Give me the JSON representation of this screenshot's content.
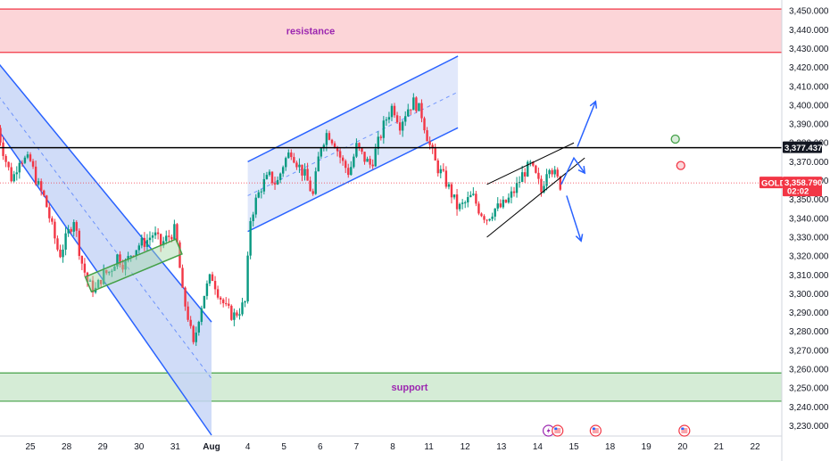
{
  "colors": {
    "up": "#089981",
    "down": "#f23645",
    "resistance_fill": "#fcd5d8",
    "resistance_border": "#f23645",
    "support_fill": "#d5ecd6",
    "support_border": "#43a047",
    "channel_blue": "#2962ff",
    "channel_fill": "#c8d6f7",
    "label_purple": "#9c27b0",
    "level_line": "#000000",
    "price_tag": "#f23645"
  },
  "chart_data": {
    "type": "candlestick",
    "symbol": "GOLD",
    "ylim": [
      3225,
      3452
    ],
    "y_ticks": [
      3230,
      3240,
      3250,
      3260,
      3270,
      3280,
      3290,
      3300,
      3310,
      3320,
      3330,
      3340,
      3350,
      3360,
      3370,
      3380,
      3390,
      3400,
      3410,
      3420,
      3430,
      3440,
      3450
    ],
    "x_ticks": [
      {
        "label": "25",
        "x": 0
      },
      {
        "label": "28",
        "x": 1
      },
      {
        "label": "29",
        "x": 2
      },
      {
        "label": "30",
        "x": 3
      },
      {
        "label": "31",
        "x": 4
      },
      {
        "label": "Aug",
        "x": 5
      },
      {
        "label": "4",
        "x": 6
      },
      {
        "label": "5",
        "x": 7
      },
      {
        "label": "6",
        "x": 8
      },
      {
        "label": "7",
        "x": 9
      },
      {
        "label": "8",
        "x": 10
      },
      {
        "label": "11",
        "x": 11
      },
      {
        "label": "12",
        "x": 12
      },
      {
        "label": "13",
        "x": 13
      },
      {
        "label": "14",
        "x": 14
      },
      {
        "label": "15",
        "x": 15
      },
      {
        "label": "18",
        "x": 16
      },
      {
        "label": "19",
        "x": 17
      },
      {
        "label": "20",
        "x": 18
      },
      {
        "label": "21",
        "x": 19
      },
      {
        "label": "22",
        "x": 20
      }
    ],
    "close_path": [
      [
        -0.9,
        3388
      ],
      [
        -0.7,
        3372
      ],
      [
        -0.5,
        3360
      ],
      [
        -0.3,
        3372
      ],
      [
        0.0,
        3370
      ],
      [
        0.2,
        3358
      ],
      [
        0.4,
        3350
      ],
      [
        0.6,
        3335
      ],
      [
        0.8,
        3320
      ],
      [
        1.0,
        3330
      ],
      [
        1.2,
        3340
      ],
      [
        1.4,
        3318
      ],
      [
        1.6,
        3305
      ],
      [
        1.8,
        3302
      ],
      [
        2.0,
        3310
      ],
      [
        2.2,
        3312
      ],
      [
        2.4,
        3320
      ],
      [
        2.6,
        3315
      ],
      [
        2.8,
        3322
      ],
      [
        3.0,
        3326
      ],
      [
        3.2,
        3328
      ],
      [
        3.4,
        3332
      ],
      [
        3.6,
        3326
      ],
      [
        3.8,
        3330
      ],
      [
        4.0,
        3334
      ],
      [
        4.1,
        3318
      ],
      [
        4.2,
        3300
      ],
      [
        4.35,
        3288
      ],
      [
        4.5,
        3272
      ],
      [
        4.65,
        3288
      ],
      [
        4.8,
        3300
      ],
      [
        5.0,
        3310
      ],
      [
        5.2,
        3300
      ],
      [
        5.4,
        3292
      ],
      [
        5.6,
        3288
      ],
      [
        5.8,
        3292
      ],
      [
        5.95,
        3296
      ],
      [
        6.05,
        3338
      ],
      [
        6.2,
        3348
      ],
      [
        6.4,
        3358
      ],
      [
        6.6,
        3362
      ],
      [
        6.8,
        3358
      ],
      [
        7.0,
        3370
      ],
      [
        7.2,
        3376
      ],
      [
        7.4,
        3368
      ],
      [
        7.6,
        3362
      ],
      [
        7.8,
        3352
      ],
      [
        8.0,
        3378
      ],
      [
        8.2,
        3386
      ],
      [
        8.4,
        3380
      ],
      [
        8.6,
        3370
      ],
      [
        8.8,
        3364
      ],
      [
        9.0,
        3378
      ],
      [
        9.2,
        3372
      ],
      [
        9.4,
        3368
      ],
      [
        9.6,
        3380
      ],
      [
        9.8,
        3392
      ],
      [
        10.0,
        3400
      ],
      [
        10.2,
        3390
      ],
      [
        10.4,
        3398
      ],
      [
        10.6,
        3402
      ],
      [
        10.8,
        3395
      ],
      [
        11.0,
        3380
      ],
      [
        11.2,
        3368
      ],
      [
        11.4,
        3362
      ],
      [
        11.6,
        3354
      ],
      [
        11.8,
        3345
      ],
      [
        12.0,
        3348
      ],
      [
        12.2,
        3352
      ],
      [
        12.4,
        3344
      ],
      [
        12.6,
        3340
      ],
      [
        12.8,
        3345
      ],
      [
        13.0,
        3346
      ],
      [
        13.2,
        3350
      ],
      [
        13.4,
        3356
      ],
      [
        13.6,
        3364
      ],
      [
        13.8,
        3368
      ],
      [
        14.0,
        3360
      ],
      [
        14.1,
        3354
      ],
      [
        14.3,
        3370
      ],
      [
        14.5,
        3362
      ],
      [
        14.65,
        3357
      ]
    ],
    "last_price": "3,358.790",
    "countdown": "02:02",
    "key_level": 3377.437,
    "key_level_label": "3,377.437",
    "zones": [
      {
        "label": "resistance",
        "from": 3428,
        "to": 3451
      },
      {
        "label": "support",
        "from": 3243,
        "to": 3258
      }
    ],
    "channels": [
      {
        "upper": [
          [
            -1.0,
            3425
          ],
          [
            5.0,
            3285
          ]
        ],
        "lower": [
          [
            -1.0,
            3390
          ],
          [
            5.0,
            3225
          ]
        ],
        "mid": [
          [
            -1.0,
            3408
          ],
          [
            5.0,
            3255
          ]
        ]
      },
      {
        "upper": [
          [
            6.0,
            3370
          ],
          [
            11.8,
            3426
          ]
        ],
        "lower": [
          [
            6.0,
            3333
          ],
          [
            11.8,
            3388
          ]
        ],
        "mid": [
          [
            6.0,
            3352
          ],
          [
            11.8,
            3407
          ]
        ]
      }
    ],
    "flag_box": {
      "from": [
        1.6,
        3305
      ],
      "to": [
        4.1,
        3325
      ],
      "height": 18
    },
    "wedge": {
      "upper": [
        [
          12.6,
          3358
        ],
        [
          15.0,
          3380
        ]
      ],
      "lower": [
        [
          12.6,
          3330
        ],
        [
          15.3,
          3372
        ]
      ]
    },
    "arrows": [
      {
        "points": [
          [
            14.65,
            3358
          ],
          [
            15.0,
            3372
          ],
          [
            15.3,
            3364
          ]
        ]
      },
      {
        "points": [
          [
            15.1,
            3378
          ],
          [
            15.6,
            3402
          ]
        ]
      },
      {
        "points": [
          [
            14.8,
            3352
          ],
          [
            15.2,
            3328
          ]
        ]
      }
    ],
    "markers": [
      {
        "x": 17.8,
        "y": 3382,
        "color": "#43a047"
      },
      {
        "x": 17.95,
        "y": 3368,
        "color": "#f23645"
      }
    ],
    "event_icons": [
      {
        "x": 14.3,
        "kind": "flash",
        "color": "#9c27b0"
      },
      {
        "x": 14.55,
        "kind": "flag",
        "color": "#f23645"
      },
      {
        "x": 15.6,
        "kind": "flag",
        "color": "#f23645"
      },
      {
        "x": 18.05,
        "kind": "flag",
        "color": "#f23645"
      }
    ]
  }
}
